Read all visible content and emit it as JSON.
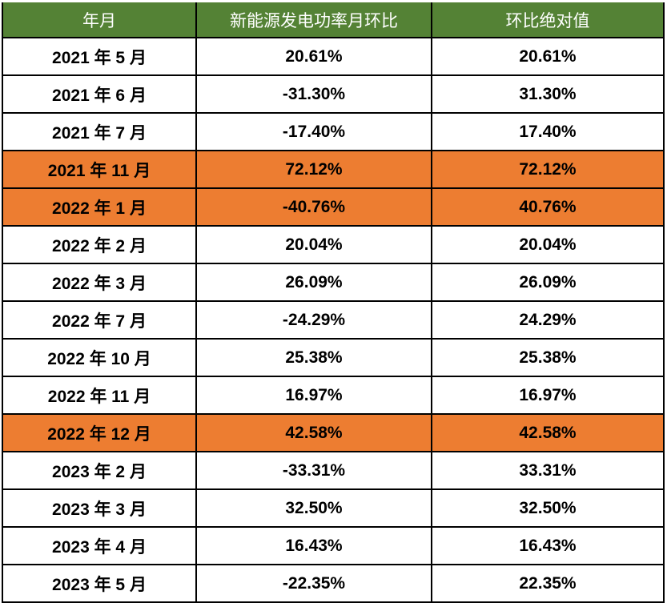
{
  "table": {
    "columns": [
      {
        "label": "年月"
      },
      {
        "label": "新能源发电功率月环比"
      },
      {
        "label": "环比绝对值"
      }
    ],
    "rows": [
      {
        "month": "2021 年 5 月",
        "mom": "20.61%",
        "abs": "20.61%",
        "highlight": false
      },
      {
        "month": "2021 年 6 月",
        "mom": "-31.30%",
        "abs": "31.30%",
        "highlight": false
      },
      {
        "month": "2021 年 7 月",
        "mom": "-17.40%",
        "abs": "17.40%",
        "highlight": false
      },
      {
        "month": "2021 年 11 月",
        "mom": "72.12%",
        "abs": "72.12%",
        "highlight": true
      },
      {
        "month": "2022 年 1 月",
        "mom": "-40.76%",
        "abs": "40.76%",
        "highlight": true
      },
      {
        "month": "2022 年 2 月",
        "mom": "20.04%",
        "abs": "20.04%",
        "highlight": false
      },
      {
        "month": "2022 年 3 月",
        "mom": "26.09%",
        "abs": "26.09%",
        "highlight": false
      },
      {
        "month": "2022 年 7 月",
        "mom": "-24.29%",
        "abs": "24.29%",
        "highlight": false
      },
      {
        "month": "2022 年 10 月",
        "mom": "25.38%",
        "abs": "25.38%",
        "highlight": false
      },
      {
        "month": "2022 年 11 月",
        "mom": "16.97%",
        "abs": "16.97%",
        "highlight": false
      },
      {
        "month": "2022 年 12 月",
        "mom": "42.58%",
        "abs": "42.58%",
        "highlight": true
      },
      {
        "month": "2023 年 2 月",
        "mom": "-33.31%",
        "abs": "33.31%",
        "highlight": false
      },
      {
        "month": "2023 年 3 月",
        "mom": "32.50%",
        "abs": "32.50%",
        "highlight": false
      },
      {
        "month": "2023 年 4 月",
        "mom": "16.43%",
        "abs": "16.43%",
        "highlight": false
      },
      {
        "month": "2023 年 5 月",
        "mom": "-22.35%",
        "abs": "22.35%",
        "highlight": false
      }
    ],
    "colors": {
      "header_bg": "#548235",
      "header_text": "#FFFFFF",
      "highlight_bg": "#ED7D31",
      "row_bg": "#FFFFFF",
      "grid": "#000000",
      "text": "#000000"
    }
  }
}
